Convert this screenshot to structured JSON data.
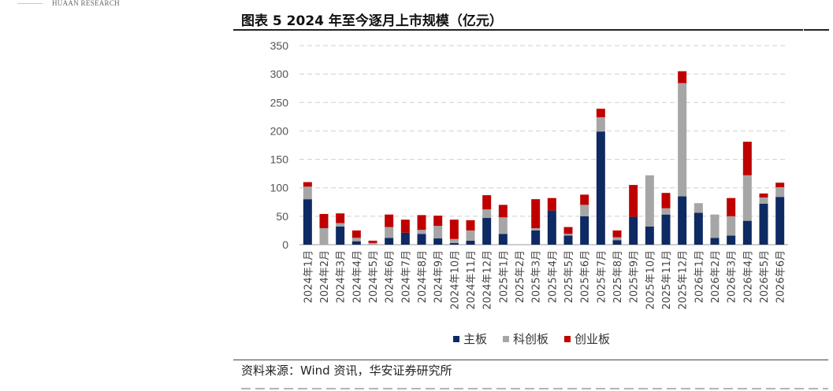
{
  "header": {
    "brand": "HUAAN RESEARCH"
  },
  "figure": {
    "title": "图表 5 2024 年至今逐月上市规模（亿元）"
  },
  "source_note": "资料来源：Wind 资讯，华安证券研究所",
  "colors": {
    "main_board": "#0d2a63",
    "star_market": "#a6a6a6",
    "chinext": "#c00000"
  },
  "chart_data": {
    "type": "bar",
    "stacked": true,
    "title": "",
    "xlabel": "",
    "ylabel": "",
    "ylim": [
      0,
      350
    ],
    "yticks": [
      0,
      50,
      100,
      150,
      200,
      250,
      300,
      350
    ],
    "grid": "horizontal-dashed",
    "legend_position": "bottom",
    "categories": [
      "2024年1月",
      "2024年2月",
      "2024年3月",
      "2024年4月",
      "2024年5月",
      "2024年6月",
      "2024年7月",
      "2024年8月",
      "2024年9月",
      "2024年10月",
      "2024年11月",
      "2024年12月",
      "2025年1月",
      "2025年2月",
      "2025年3月",
      "2025年4月",
      "2025年5月",
      "2025年6月",
      "2025年7月",
      "2025年8月",
      "2025年9月",
      "2025年10月",
      "2025年11月",
      "2025年12月",
      "2026年1月",
      "2026年2月",
      "2026年3月",
      "2026年4月",
      "2026年5月",
      "2026年6月"
    ],
    "series": [
      {
        "name": "主板",
        "values": [
          80,
          0,
          32,
          6,
          0,
          12,
          21,
          19,
          11,
          3,
          7,
          47,
          19,
          0,
          25,
          60,
          16,
          50,
          199,
          8,
          49,
          32,
          53,
          85,
          56,
          12,
          16,
          42,
          72,
          84
        ]
      },
      {
        "name": "科创板",
        "values": [
          22,
          29,
          6,
          6,
          3,
          19,
          0,
          7,
          22,
          7,
          18,
          15,
          29,
          0,
          4,
          0,
          3,
          20,
          25,
          5,
          0,
          90,
          11,
          199,
          17,
          41,
          34,
          80,
          11,
          17
        ]
      },
      {
        "name": "创业板",
        "values": [
          8,
          25,
          17,
          13,
          4,
          22,
          23,
          26,
          18,
          34,
          18,
          25,
          22,
          0,
          51,
          22,
          12,
          18,
          15,
          12,
          56,
          0,
          27,
          21,
          0,
          0,
          32,
          59,
          7,
          8
        ]
      }
    ]
  }
}
